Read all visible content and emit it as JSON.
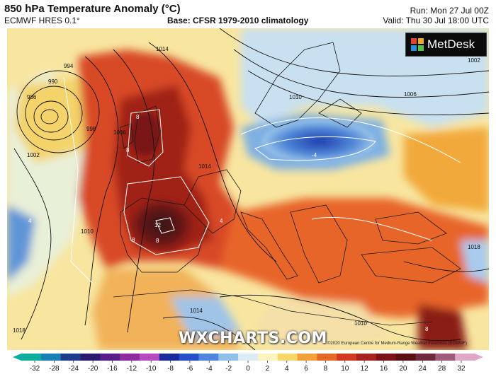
{
  "header": {
    "title": "850 hPa Temperature Anomaly (°C)",
    "model": "ECMWF HRES 0.1°",
    "base": "Base: CFSR 1979-2010 climatology",
    "run": "Run: Mon 27 Jul 00Z",
    "valid": "Valid: Thu 30 Jul 18:00 UTC"
  },
  "logo": {
    "text": "MetDesk",
    "icon": "metdesk-logo-icon"
  },
  "watermark": "WXCHARTS.COM",
  "copyright": "©2020 European Centre for Medium-Range Weather Forecasts (ECMWF)",
  "isobar_labels": [
    "986",
    "990",
    "994",
    "998",
    "1002",
    "1006",
    "1010",
    "1014",
    "1018",
    "1010",
    "1002",
    "1006",
    "1014",
    "1010",
    "1014",
    "1018"
  ],
  "anomaly_labels": [
    "8",
    "8",
    "12",
    "8",
    "4",
    "4",
    "-4",
    "-4",
    "8",
    "8"
  ],
  "colorbar": {
    "ticks": [
      "-32",
      "-28",
      "-24",
      "-20",
      "-16",
      "-12",
      "-10",
      "-8",
      "-6",
      "-4",
      "-2",
      "0",
      "2",
      "4",
      "6",
      "8",
      "10",
      "12",
      "16",
      "20",
      "24",
      "28",
      "32"
    ],
    "colors": [
      "#0fae9e",
      "#1a7fb4",
      "#1b3d8c",
      "#2a1a6e",
      "#5a1e8a",
      "#8f2ca0",
      "#b64cc0",
      "#1a2c9c",
      "#2550c8",
      "#4f86dc",
      "#8fc0ea",
      "#dcecf6",
      "#fbf3c0",
      "#f6d86a",
      "#f2a23a",
      "#e56a28",
      "#d03a22",
      "#a8221e",
      "#7a1416",
      "#5a1010",
      "#6e2a3a",
      "#a05a7a",
      "#e0a8c8"
    ]
  }
}
